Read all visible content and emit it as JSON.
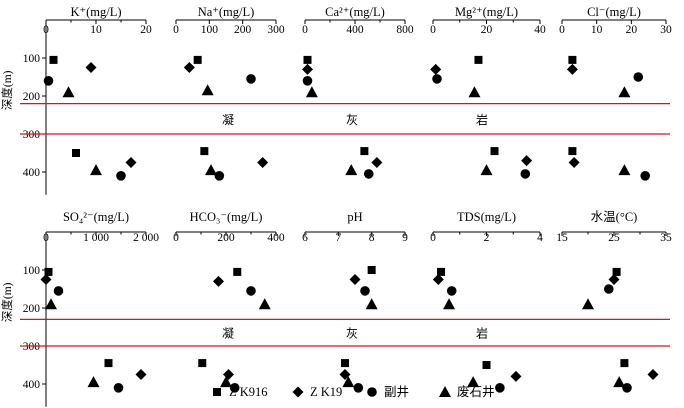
{
  "chart_data": [
    {
      "type": "scatter",
      "title": "K⁺(mg/L)",
      "xlim": [
        0,
        20
      ],
      "xticks": [
        "0",
        "10",
        "20"
      ],
      "ylabel": "深度(m)",
      "ylim": [
        0,
        460
      ],
      "yticks": [
        "100",
        "200",
        "300",
        "400"
      ],
      "series": [
        {
          "name": "Z K916",
          "marker": "square",
          "points": [
            [
              1.5,
              105
            ],
            [
              6,
              350
            ]
          ]
        },
        {
          "name": "Z K19",
          "marker": "diamond",
          "points": [
            [
              9,
              125
            ],
            [
              17,
              375
            ]
          ]
        },
        {
          "name": "副井",
          "marker": "circle",
          "points": [
            [
              0.5,
              160
            ],
            [
              15,
              410
            ]
          ]
        },
        {
          "name": "废石井",
          "marker": "triangle",
          "points": [
            [
              4.5,
              190
            ],
            [
              10,
              395
            ]
          ]
        }
      ]
    },
    {
      "type": "scatter",
      "title": "Na⁺(mg/L)",
      "xlim": [
        0,
        300
      ],
      "xticks": [
        "0",
        "100",
        "200",
        "300"
      ],
      "ylim": [
        0,
        460
      ],
      "series": [
        {
          "name": "Z K916",
          "marker": "square",
          "points": [
            [
              65,
              105
            ],
            [
              85,
              345
            ]
          ]
        },
        {
          "name": "Z K19",
          "marker": "diamond",
          "points": [
            [
              40,
              125
            ],
            [
              260,
              375
            ]
          ]
        },
        {
          "name": "副井",
          "marker": "circle",
          "points": [
            [
              225,
              155
            ],
            [
              130,
              410
            ]
          ]
        },
        {
          "name": "废石井",
          "marker": "triangle",
          "points": [
            [
              95,
              185
            ],
            [
              105,
              395
            ]
          ]
        }
      ]
    },
    {
      "type": "scatter",
      "title": "Ca²⁺(mg/L)",
      "xlim": [
        0,
        800
      ],
      "xticks": [
        "0",
        "400",
        "800"
      ],
      "ylim": [
        0,
        460
      ],
      "series": [
        {
          "name": "Z K916",
          "marker": "square",
          "points": [
            [
              20,
              105
            ],
            [
              475,
              345
            ]
          ]
        },
        {
          "name": "Z K19",
          "marker": "diamond",
          "points": [
            [
              20,
              130
            ],
            [
              575,
              375
            ]
          ]
        },
        {
          "name": "副井",
          "marker": "circle",
          "points": [
            [
              20,
              160
            ],
            [
              510,
              405
            ]
          ]
        },
        {
          "name": "废石井",
          "marker": "triangle",
          "points": [
            [
              55,
              190
            ],
            [
              370,
              395
            ]
          ]
        }
      ]
    },
    {
      "type": "scatter",
      "title": "Mg²⁺(mg/L)",
      "xlim": [
        0,
        40
      ],
      "xticks": [
        "0",
        "20",
        "40"
      ],
      "ylim": [
        0,
        460
      ],
      "series": [
        {
          "name": "Z K916",
          "marker": "square",
          "points": [
            [
              17,
              105
            ],
            [
              23,
              345
            ]
          ]
        },
        {
          "name": "Z K19",
          "marker": "diamond",
          "points": [
            [
              1,
              130
            ],
            [
              35,
              370
            ]
          ]
        },
        {
          "name": "副井",
          "marker": "circle",
          "points": [
            [
              1.5,
              155
            ],
            [
              34.5,
              405
            ]
          ]
        },
        {
          "name": "废石井",
          "marker": "triangle",
          "points": [
            [
              15.5,
              190
            ],
            [
              20,
              395
            ]
          ]
        }
      ]
    },
    {
      "type": "scatter",
      "title": "Cl⁻(mg/L)",
      "xlim": [
        0,
        30
      ],
      "xticks": [
        "0",
        "10",
        "20",
        "30"
      ],
      "ylim": [
        0,
        460
      ],
      "series": [
        {
          "name": "Z K916",
          "marker": "square",
          "points": [
            [
              3,
              105
            ],
            [
              3,
              345
            ]
          ]
        },
        {
          "name": "Z K19",
          "marker": "diamond",
          "points": [
            [
              3,
              130
            ],
            [
              3.5,
              375
            ]
          ]
        },
        {
          "name": "副井",
          "marker": "circle",
          "points": [
            [
              22,
              150
            ],
            [
              24,
              410
            ]
          ]
        },
        {
          "name": "废石井",
          "marker": "triangle",
          "points": [
            [
              18,
              190
            ],
            [
              18,
              395
            ]
          ]
        }
      ]
    },
    {
      "type": "scatter",
      "title": "SO₄²⁻(mg/L)",
      "xlim": [
        0,
        2000
      ],
      "xticks": [
        "0",
        "1 000",
        "2 000"
      ],
      "ylabel": "深度(m)",
      "ylim": [
        0,
        460
      ],
      "yticks": [
        "100",
        "200",
        "300",
        "400"
      ],
      "series": [
        {
          "name": "Z K916",
          "marker": "square",
          "points": [
            [
              50,
              105
            ],
            [
              1250,
              345
            ]
          ]
        },
        {
          "name": "Z K19",
          "marker": "diamond",
          "points": [
            [
              0,
              125
            ],
            [
              1900,
              375
            ]
          ]
        },
        {
          "name": "副井",
          "marker": "circle",
          "points": [
            [
              250,
              155
            ],
            [
              1450,
              410
            ]
          ]
        },
        {
          "name": "废石井",
          "marker": "triangle",
          "points": [
            [
              100,
              190
            ],
            [
              950,
              395
            ]
          ]
        }
      ]
    },
    {
      "type": "scatter",
      "title": "HCO₃⁻(mg/L)",
      "xlim": [
        0,
        400
      ],
      "xticks": [
        "0",
        "200",
        "400"
      ],
      "ylim": [
        0,
        460
      ],
      "series": [
        {
          "name": "Z K916",
          "marker": "square",
          "points": [
            [
              245,
              105
            ],
            [
              105,
              345
            ]
          ]
        },
        {
          "name": "Z K19",
          "marker": "diamond",
          "points": [
            [
              170,
              130
            ],
            [
              210,
              375
            ]
          ]
        },
        {
          "name": "副井",
          "marker": "circle",
          "points": [
            [
              300,
              155
            ],
            [
              235,
              410
            ]
          ]
        },
        {
          "name": "废石井",
          "marker": "triangle",
          "points": [
            [
              355,
              190
            ],
            [
              200,
              395
            ]
          ]
        }
      ]
    },
    {
      "type": "scatter",
      "title": "pH",
      "xlim": [
        6,
        9
      ],
      "xticks": [
        "6",
        "7",
        "8",
        "9"
      ],
      "ylim": [
        0,
        460
      ],
      "series": [
        {
          "name": "Z K916",
          "marker": "square",
          "points": [
            [
              8,
              100
            ],
            [
              7.2,
              345
            ]
          ]
        },
        {
          "name": "Z K19",
          "marker": "diamond",
          "points": [
            [
              7.5,
              125
            ],
            [
              7.2,
              375
            ]
          ]
        },
        {
          "name": "副井",
          "marker": "circle",
          "points": [
            [
              7.8,
              155
            ],
            [
              7.6,
              410
            ]
          ]
        },
        {
          "name": "废石井",
          "marker": "triangle",
          "points": [
            [
              8,
              190
            ],
            [
              7.3,
              395
            ]
          ]
        }
      ]
    },
    {
      "type": "scatter",
      "title": "TDS(mg/L)",
      "xlim": [
        0,
        4
      ],
      "xticks": [
        "0",
        "2",
        "4"
      ],
      "ylim": [
        0,
        460
      ],
      "series": [
        {
          "name": "Z K916",
          "marker": "square",
          "points": [
            [
              0.3,
              105
            ],
            [
              2,
              350
            ]
          ]
        },
        {
          "name": "Z K19",
          "marker": "diamond",
          "points": [
            [
              0.2,
              125
            ],
            [
              3.1,
              380
            ]
          ]
        },
        {
          "name": "副井",
          "marker": "circle",
          "points": [
            [
              0.7,
              155
            ],
            [
              2.5,
              410
            ]
          ]
        },
        {
          "name": "废石井",
          "marker": "triangle",
          "points": [
            [
              0.6,
              190
            ],
            [
              1.5,
              395
            ]
          ]
        }
      ]
    },
    {
      "type": "scatter",
      "title": "水温(°C)",
      "xlim": [
        15,
        35
      ],
      "xticks": [
        "15",
        "25",
        "35"
      ],
      "ylim": [
        0,
        460
      ],
      "series": [
        {
          "name": "Z K916",
          "marker": "square",
          "points": [
            [
              25.5,
              105
            ],
            [
              27,
              345
            ]
          ]
        },
        {
          "name": "Z K19",
          "marker": "diamond",
          "points": [
            [
              25,
              125
            ],
            [
              32.5,
              375
            ]
          ]
        },
        {
          "name": "副井",
          "marker": "circle",
          "points": [
            [
              24,
              150
            ],
            [
              27.5,
              410
            ]
          ]
        },
        {
          "name": "废石井",
          "marker": "triangle",
          "points": [
            [
              20,
              190
            ],
            [
              26,
              395
            ]
          ]
        }
      ]
    }
  ],
  "bands": [
    {
      "top": 220,
      "bottom": 300,
      "label": [
        "凝",
        "灰",
        "岩"
      ]
    },
    {
      "top": 230,
      "bottom": 300,
      "label": [
        "凝",
        "灰",
        "岩"
      ]
    }
  ],
  "legend": [
    {
      "name": "Z K916",
      "marker": "square"
    },
    {
      "name": "Z K19",
      "marker": "diamond"
    },
    {
      "name": "副井",
      "marker": "circle"
    },
    {
      "name": "废石井",
      "marker": "triangle"
    }
  ],
  "colors": {
    "band_line": "#d8141b",
    "marker": "#000000"
  }
}
